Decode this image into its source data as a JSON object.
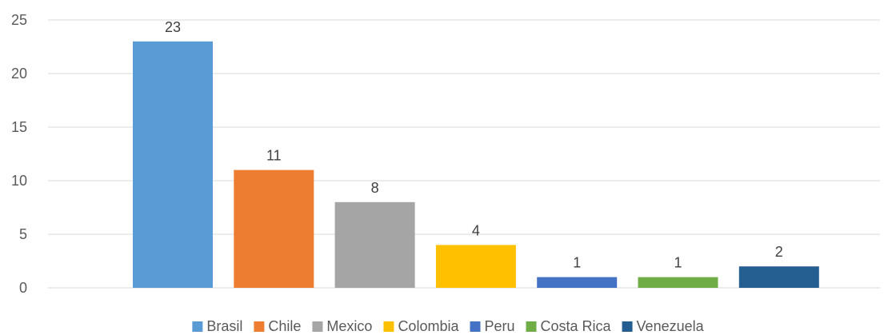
{
  "chart_data": {
    "type": "bar",
    "categories": [
      "Brasil",
      "Chile",
      "Mexico",
      "Colombia",
      "Peru",
      "Costa Rica",
      "Venezuela"
    ],
    "values": [
      23,
      11,
      8,
      4,
      1,
      1,
      2
    ],
    "colors": [
      "#5B9BD5",
      "#ED7D31",
      "#A5A5A5",
      "#FFC000",
      "#4472C4",
      "#70AD47",
      "#255E91"
    ],
    "ylim": [
      0,
      25
    ],
    "yticks": [
      0,
      5,
      10,
      15,
      20,
      25
    ],
    "grid": true,
    "legend": "bottom",
    "title": "",
    "xlabel": "",
    "ylabel": ""
  }
}
